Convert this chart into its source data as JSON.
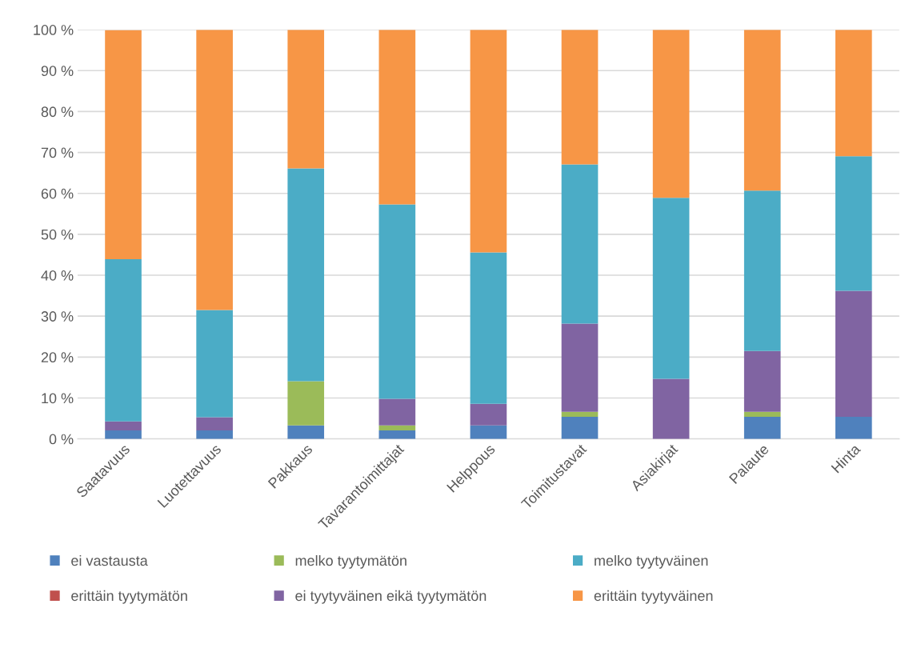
{
  "chart_data": {
    "type": "bar",
    "stacked": true,
    "categories": [
      "Saatavuus",
      "Luotettavuus",
      "Pakkaus",
      "Tavarantoimittajat",
      "Helppous",
      "Toimitustavat",
      "Asiakirjat",
      "Palaute",
      "Hinta"
    ],
    "series": [
      {
        "name": "ei vastausta",
        "color": "#4f81bd",
        "values": [
          2.1,
          2.1,
          3.3,
          2.1,
          3.3,
          5.4,
          0,
          5.4,
          5.4
        ]
      },
      {
        "name": "erittäin tyytymätön",
        "color": "#c0504d",
        "values": [
          0,
          0,
          0,
          0,
          0,
          0,
          0,
          0,
          0
        ]
      },
      {
        "name": "melko tyytymätön",
        "color": "#9bbb59",
        "values": [
          0,
          0,
          10.8,
          1.2,
          0,
          1.2,
          0,
          1.2,
          0
        ]
      },
      {
        "name": "ei tyytyväinen eikä tyytymätön",
        "color": "#8064a2",
        "values": [
          2.2,
          3.2,
          0,
          6.5,
          5.3,
          21.6,
          14.7,
          14.9,
          30.8
        ]
      },
      {
        "name": "melko tyytyväinen",
        "color": "#4bacc6",
        "values": [
          39.6,
          26.2,
          52.0,
          47.5,
          37.0,
          38.9,
          44.2,
          39.2,
          32.9
        ]
      },
      {
        "name": "erittäin tyytyväinen",
        "color": "#f79646",
        "values": [
          56.0,
          68.5,
          33.9,
          42.7,
          54.4,
          32.9,
          41.1,
          39.3,
          30.9
        ]
      }
    ],
    "ylim": [
      0,
      100
    ],
    "yticks": [
      {
        "value": 0,
        "label": "0 %"
      },
      {
        "value": 10,
        "label": "10 %"
      },
      {
        "value": 20,
        "label": "20 %"
      },
      {
        "value": 30,
        "label": "30 %"
      },
      {
        "value": 40,
        "label": "40 %"
      },
      {
        "value": 50,
        "label": "50 %"
      },
      {
        "value": 60,
        "label": "60 %"
      },
      {
        "value": 70,
        "label": "70 %"
      },
      {
        "value": 80,
        "label": "80 %"
      },
      {
        "value": 90,
        "label": "90 %"
      },
      {
        "value": 100,
        "label": "100 %"
      }
    ],
    "grid": "y",
    "legend": "bottom"
  }
}
